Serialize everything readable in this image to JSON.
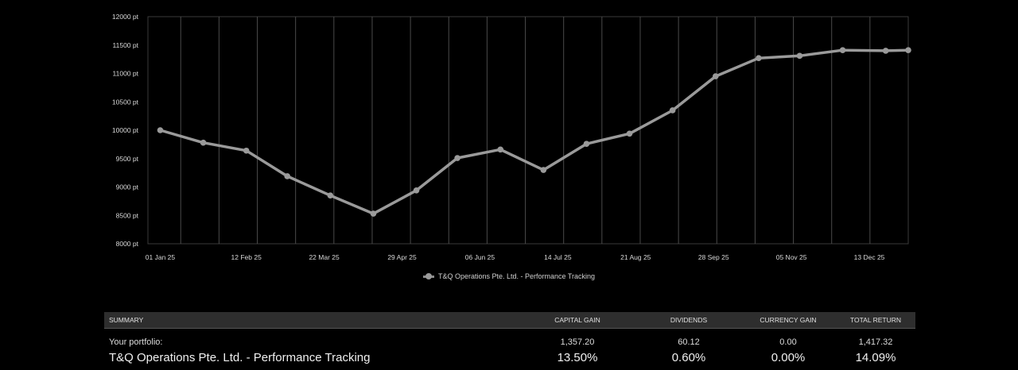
{
  "chart_data": {
    "type": "line",
    "y_unit_suffix": " pt",
    "ylim": [
      8000,
      12000
    ],
    "ytick_values": [
      8000,
      8500,
      9000,
      9500,
      10000,
      10500,
      11000,
      11500,
      12000
    ],
    "ytick_labels": [
      "8000 pt",
      "8500 pt",
      "9000 pt",
      "9500 pt",
      "10000 pt",
      "10500 pt",
      "11000 pt",
      "11500 pt",
      "12000 pt"
    ],
    "xlim": [
      "2024-12-26",
      "2026-01-01"
    ],
    "xtick_labels": [
      "01 Jan 25",
      "12 Feb 25",
      "22 Mar 25",
      "29 Apr 25",
      "06 Jun 25",
      "14 Jul 25",
      "21 Aug 25",
      "28 Sep 25",
      "05 Nov 25",
      "13 Dec 25"
    ],
    "xtick_dates": [
      "2025-01-01",
      "2025-02-12",
      "2025-03-22",
      "2025-04-29",
      "2025-06-06",
      "2025-07-14",
      "2025-08-21",
      "2025-09-28",
      "2025-11-05",
      "2025-12-13"
    ],
    "grid": "vertical",
    "legend_position": "bottom",
    "series": [
      {
        "name": "T&Q Operations Pte. Ltd. - Performance Tracking",
        "color": "#9a9a9a",
        "x": [
          "2025-01-01",
          "2025-01-22",
          "2025-02-12",
          "2025-03-04",
          "2025-03-25",
          "2025-04-15",
          "2025-05-06",
          "2025-05-26",
          "2025-06-16",
          "2025-07-07",
          "2025-07-28",
          "2025-08-18",
          "2025-09-08",
          "2025-09-29",
          "2025-10-20",
          "2025-11-09",
          "2025-11-30",
          "2025-12-21",
          "2026-01-01"
        ],
        "y": [
          10000,
          9780,
          9640,
          9190,
          8850,
          8530,
          8940,
          9510,
          9660,
          9300,
          9760,
          9940,
          10350,
          10950,
          11270,
          11310,
          11410,
          11400,
          11410
        ]
      }
    ]
  },
  "summary": {
    "headers": [
      "SUMMARY",
      "CAPITAL GAIN",
      "DIVIDENDS",
      "CURRENCY GAIN",
      "TOTAL RETURN"
    ],
    "amount_row": {
      "label": "Your portfolio:",
      "capital_gain": "1,357.20",
      "dividends": "60.12",
      "currency_gain": "0.00",
      "total_return": "1,417.32"
    },
    "percent_row": {
      "label": "T&Q Operations Pte. Ltd. - Performance Tracking",
      "capital_gain": "13.50%",
      "dividends": "0.60%",
      "currency_gain": "0.00%",
      "total_return": "14.09%"
    }
  }
}
